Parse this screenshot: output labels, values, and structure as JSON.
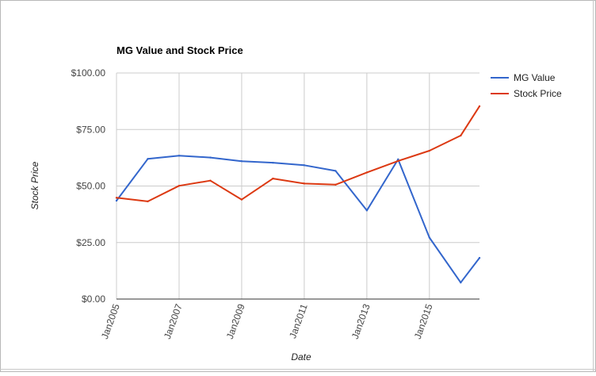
{
  "chart_data": {
    "type": "line",
    "title": "MG Value and Stock Price",
    "xlabel": "Date",
    "ylabel": "Stock Price",
    "x_ticks": [
      "Jan2005",
      "Jan2007",
      "Jan2009",
      "Jan2011",
      "Jan2013",
      "Jan2015"
    ],
    "y_ticks": [
      "$0.00",
      "$25.00",
      "$50.00",
      "$75.00",
      "$100.00"
    ],
    "ylim": [
      0,
      100
    ],
    "xlim": [
      2005,
      2016.6
    ],
    "grid": true,
    "legend_position": "top-right",
    "x": [
      2005,
      2006,
      2007,
      2008,
      2009,
      2010,
      2011,
      2012,
      2013,
      2014,
      2015,
      2016,
      2016.6
    ],
    "series": [
      {
        "name": "MG Value",
        "color": "#3366cc",
        "values": [
          43.5,
          62,
          63.4,
          62.6,
          61,
          60.3,
          59.2,
          56.7,
          39.2,
          61.8,
          27.2,
          7.3,
          18.2
        ]
      },
      {
        "name": "Stock Price",
        "color": "#dc3912",
        "values": [
          44.8,
          43.2,
          50.1,
          52.4,
          44,
          53.3,
          51.1,
          50.6,
          56,
          61.1,
          65.6,
          72.3,
          85.3
        ]
      }
    ]
  }
}
